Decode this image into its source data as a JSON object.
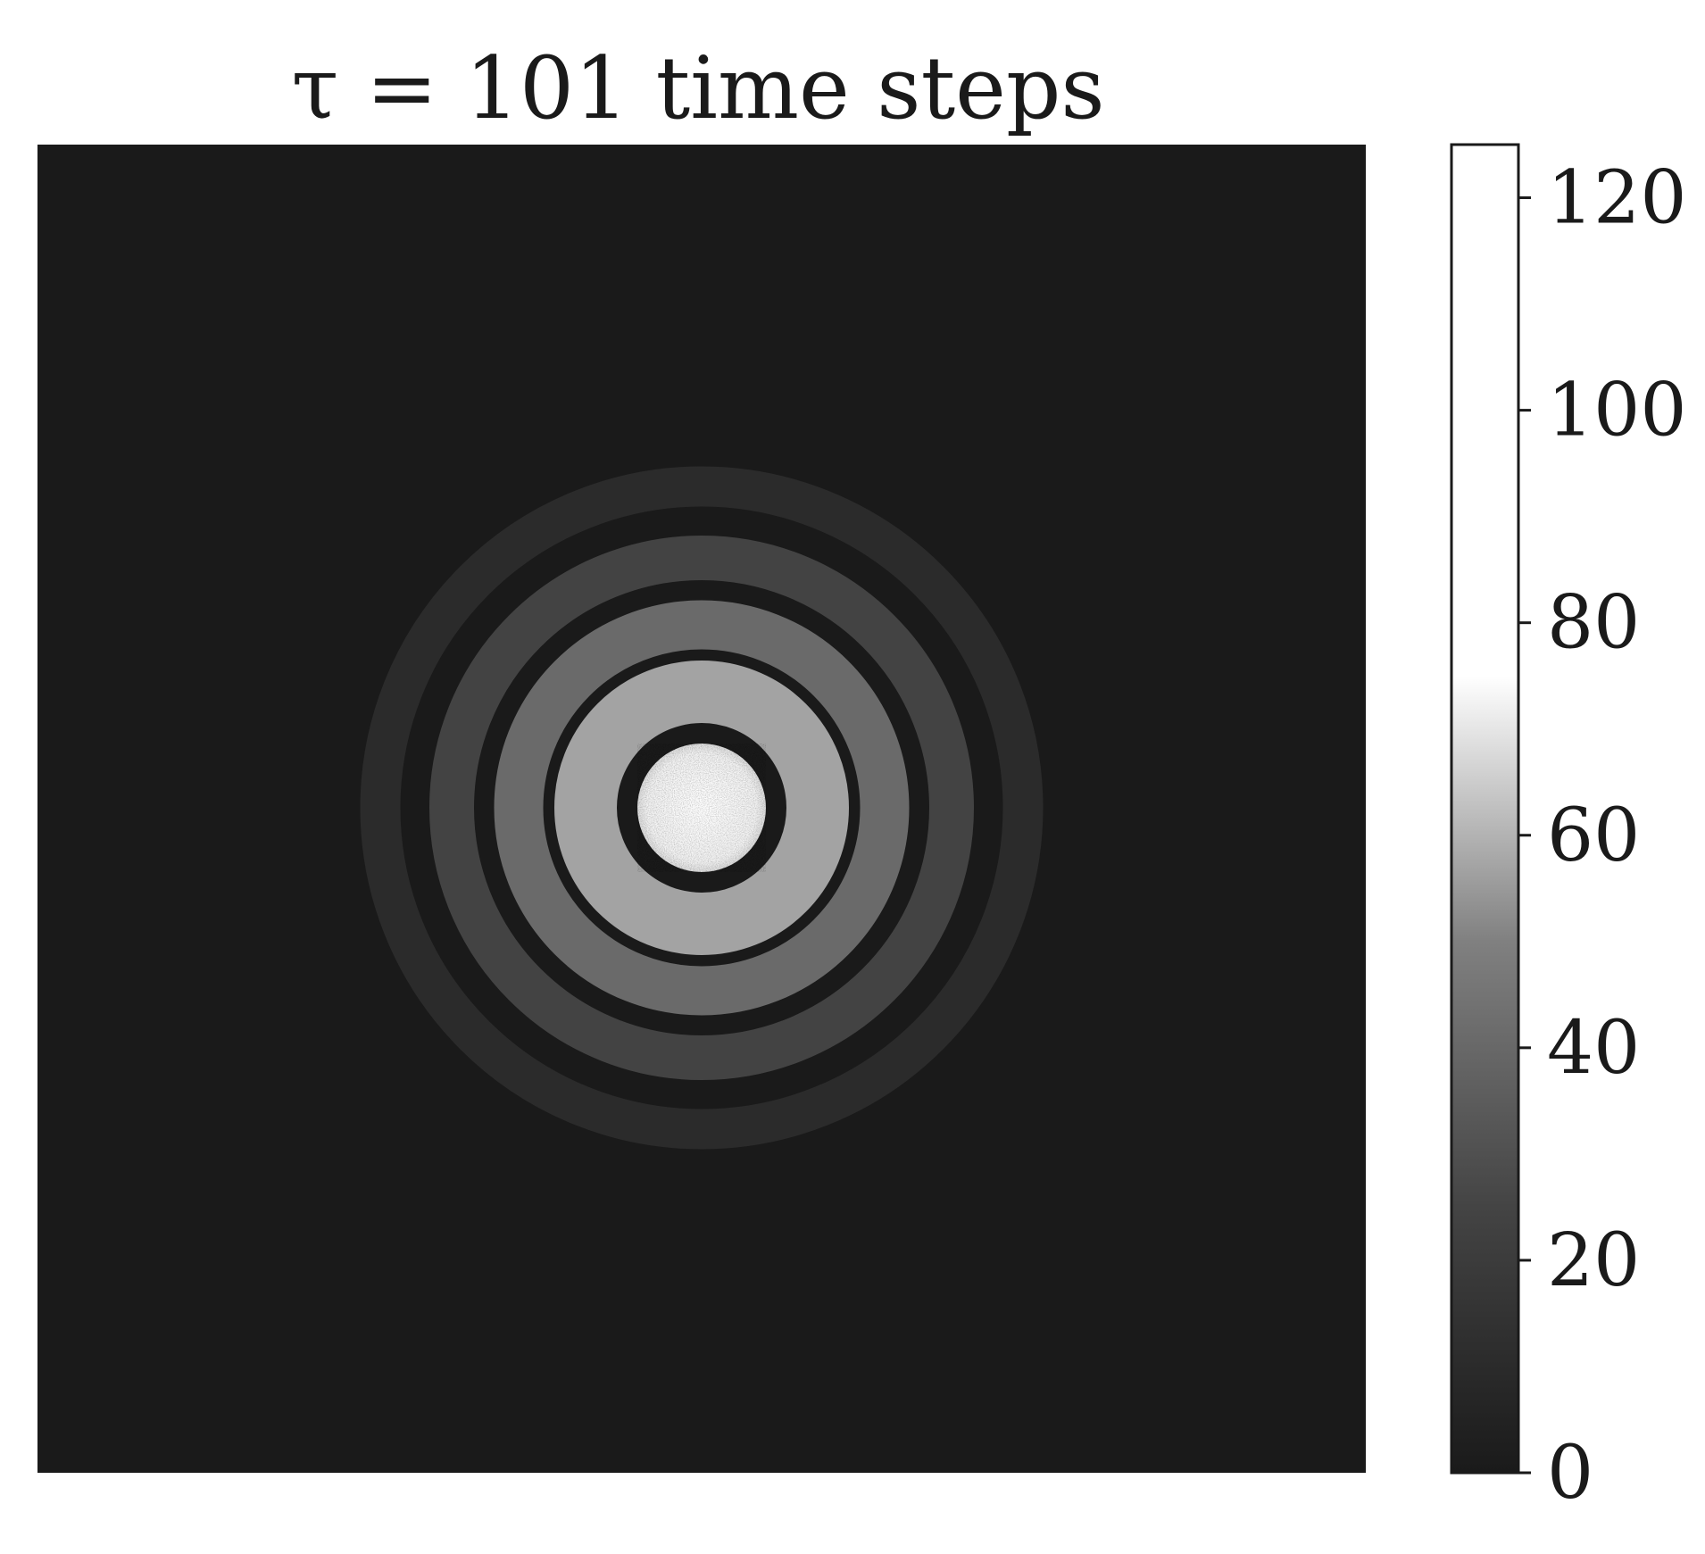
{
  "chart_data": {
    "type": "heatmap",
    "title": "τ = 101 time steps",
    "colormap": "gray",
    "background_value": 0,
    "xlabel": "",
    "ylabel": "",
    "colorbar": {
      "range": [
        0,
        125
      ],
      "ticks": [
        0,
        20,
        40,
        60,
        80,
        100,
        120
      ],
      "tick_labels": [
        "0",
        "20",
        "40",
        "60",
        "80",
        "100",
        "120"
      ]
    },
    "pattern": {
      "description_type": "concentric ring pattern",
      "center": [
        0.5,
        0.5
      ],
      "core_value": 125,
      "ring_values": [
        60,
        35,
        18,
        8
      ]
    },
    "axes_visible": false,
    "grid": false
  }
}
